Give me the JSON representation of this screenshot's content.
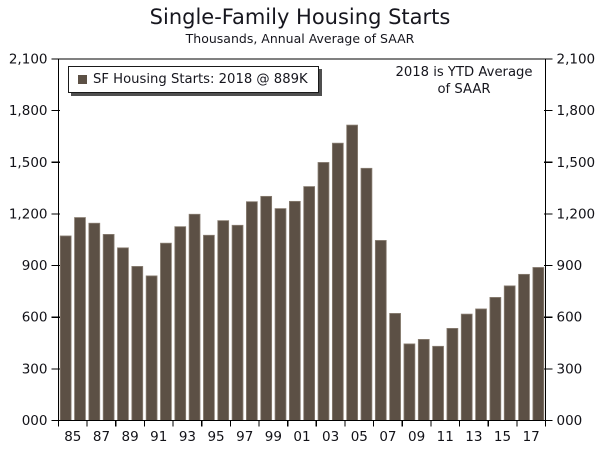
{
  "title": "Single-Family Housing Starts",
  "subtitle": "Thousands, Annual Average of SAAR",
  "legend": {
    "label": "SF Housing Starts: 2018 @ 889K"
  },
  "annotation": {
    "lines": [
      "2018 is YTD Average",
      "of SAAR"
    ]
  },
  "colors": {
    "bar": "#5c5045",
    "bar_edge": "#8a7f73",
    "axis": "#000000",
    "text": "#16161e",
    "background": "#ffffff",
    "legend_shadow": "#4f4f4f"
  },
  "chart_data": {
    "type": "bar",
    "title": "Single-Family Housing Starts",
    "subtitle": "Thousands, Annual Average of SAAR",
    "series_name": "SF Housing Starts",
    "x": [
      1985,
      1986,
      1987,
      1988,
      1989,
      1990,
      1991,
      1992,
      1993,
      1994,
      1995,
      1996,
      1997,
      1998,
      1999,
      2000,
      2001,
      2002,
      2003,
      2004,
      2005,
      2006,
      2007,
      2008,
      2009,
      2010,
      2011,
      2012,
      2013,
      2014,
      2015,
      2016,
      2017,
      2018
    ],
    "values": [
      1072,
      1179,
      1146,
      1081,
      1003,
      895,
      840,
      1030,
      1126,
      1198,
      1076,
      1161,
      1134,
      1271,
      1302,
      1231,
      1273,
      1359,
      1499,
      1611,
      1716,
      1465,
      1046,
      622,
      445,
      471,
      431,
      535,
      618,
      648,
      715,
      782,
      849,
      889
    ],
    "xlabel": "",
    "ylabel": "",
    "ylim": [
      0,
      2100
    ],
    "ytick_interval": 300,
    "ytick_labels": [
      "000",
      "300",
      "600",
      "900",
      "1,200",
      "1,500",
      "1,800",
      "2,100"
    ],
    "xtick_labels": [
      "85",
      "87",
      "89",
      "91",
      "93",
      "95",
      "97",
      "99",
      "01",
      "03",
      "05",
      "07",
      "09",
      "11",
      "13",
      "15",
      "17"
    ],
    "legend_entry": "SF Housing Starts: 2018 @ 889K",
    "annotation_text": "2018 is YTD Average of SAAR",
    "grid": false,
    "legend_position": "top-left-inside",
    "y_axis_sides": "both",
    "units": "thousands"
  }
}
